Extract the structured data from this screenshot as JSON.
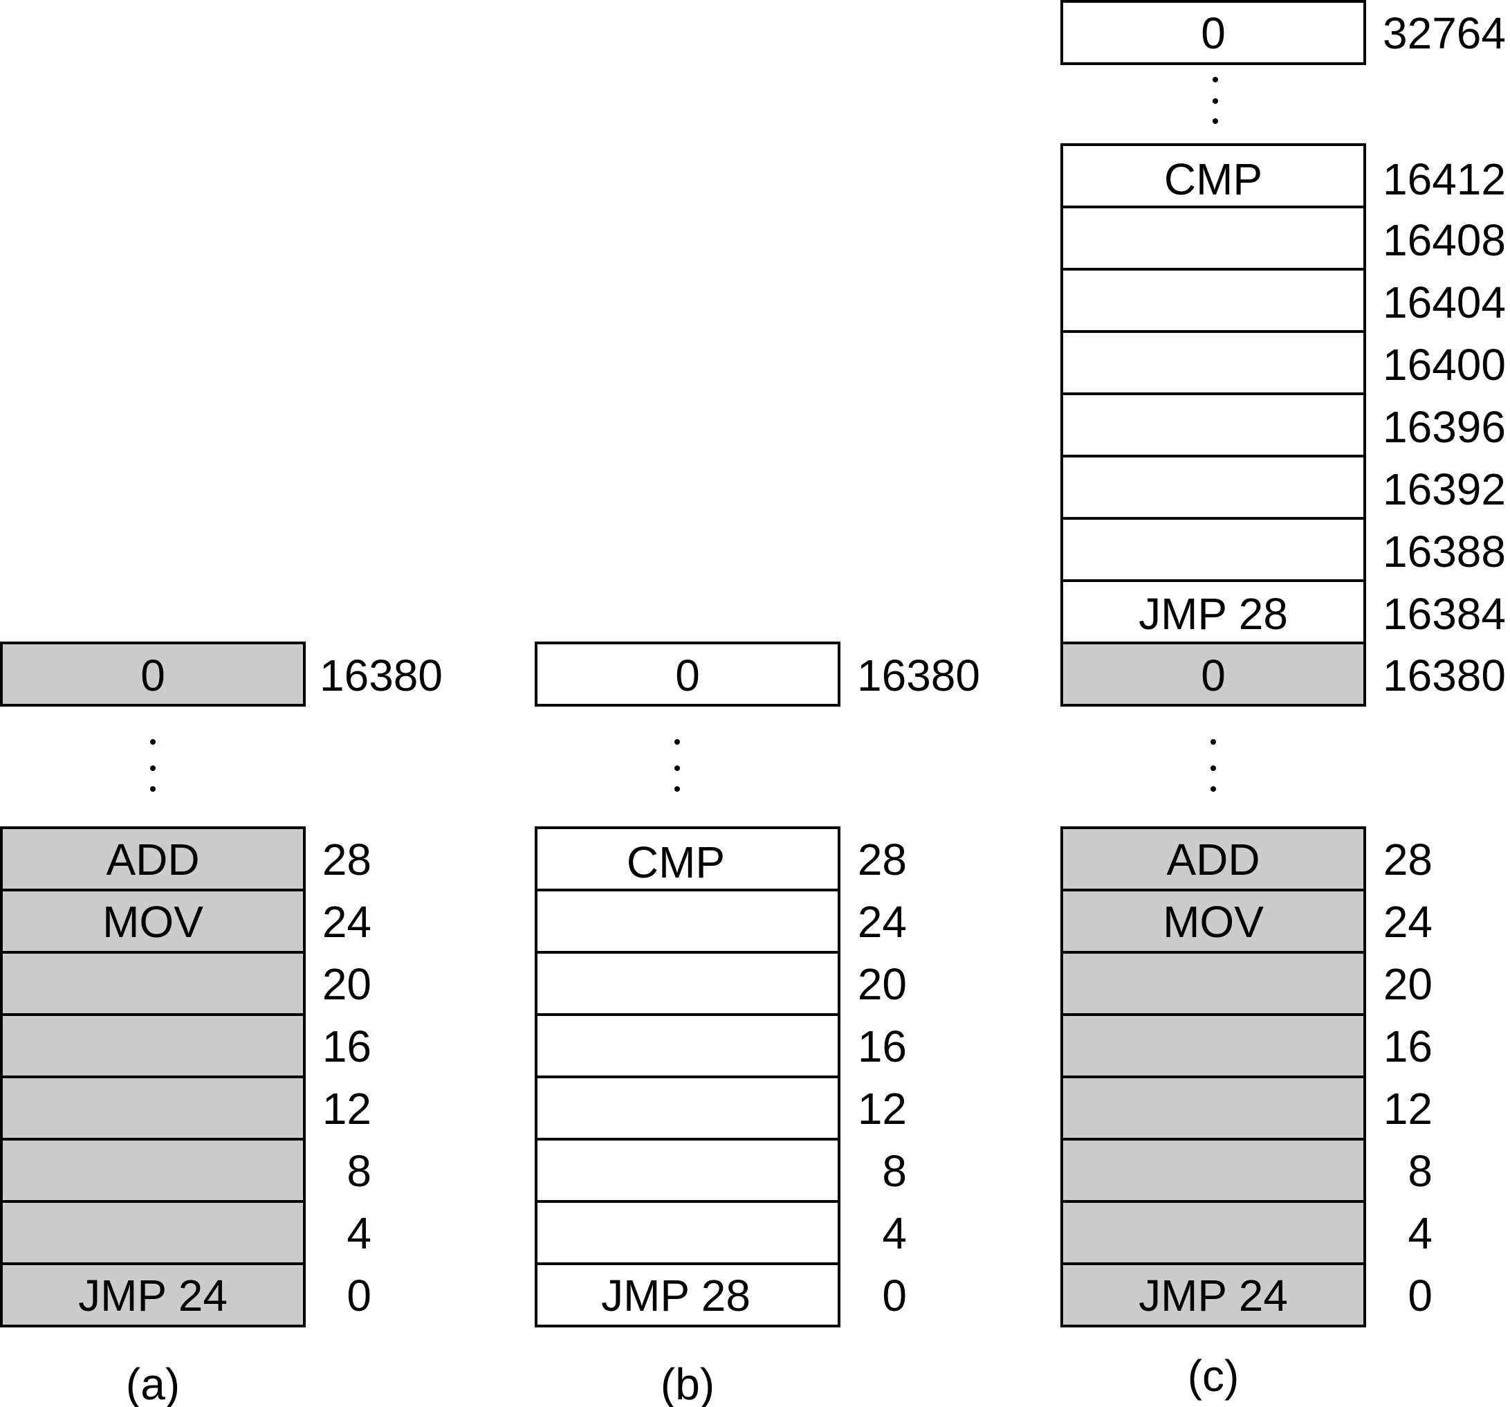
{
  "colors": {
    "shaded": "#cccccc",
    "plain": "#ffffff",
    "line": "#000000"
  },
  "panels": [
    {
      "caption": "(a)",
      "low_block": {
        "cells": [
          {
            "text": "ADD",
            "addr": "28",
            "shaded": true
          },
          {
            "text": "MOV",
            "addr": "24",
            "shaded": true
          },
          {
            "text": "",
            "addr": "20",
            "shaded": true
          },
          {
            "text": "",
            "addr": "16",
            "shaded": true
          },
          {
            "text": "",
            "addr": "12",
            "shaded": true
          },
          {
            "text": "",
            "addr": "8",
            "shaded": true
          },
          {
            "text": "",
            "addr": "4",
            "shaded": true
          },
          {
            "text": "JMP  24",
            "addr": "0",
            "shaded": true
          }
        ]
      },
      "top_cell": {
        "text": "0",
        "addr": "16380",
        "shaded": true
      }
    },
    {
      "caption": "(b)",
      "low_block": {
        "cells": [
          {
            "text": "CMP",
            "addr": "28",
            "shaded": false
          },
          {
            "text": "",
            "addr": "24",
            "shaded": false
          },
          {
            "text": "",
            "addr": "20",
            "shaded": false
          },
          {
            "text": "",
            "addr": "16",
            "shaded": false
          },
          {
            "text": "",
            "addr": "12",
            "shaded": false
          },
          {
            "text": "",
            "addr": "8",
            "shaded": false
          },
          {
            "text": "",
            "addr": "4",
            "shaded": false
          },
          {
            "text": "JMP 28",
            "addr": "0",
            "shaded": false
          }
        ]
      },
      "top_cell": {
        "text": "0",
        "addr": "16380",
        "shaded": false
      }
    },
    {
      "caption": "(c)",
      "low_block": {
        "cells": [
          {
            "text": "ADD",
            "addr": "28",
            "shaded": true
          },
          {
            "text": "MOV",
            "addr": "24",
            "shaded": true
          },
          {
            "text": "",
            "addr": "20",
            "shaded": true
          },
          {
            "text": "",
            "addr": "16",
            "shaded": true
          },
          {
            "text": "",
            "addr": "12",
            "shaded": true
          },
          {
            "text": "",
            "addr": "8",
            "shaded": true
          },
          {
            "text": "",
            "addr": "4",
            "shaded": true
          },
          {
            "text": "JMP  24",
            "addr": "0",
            "shaded": true
          }
        ]
      },
      "mid_block": {
        "cells": [
          {
            "text": "CMP",
            "addr": "16412",
            "shaded": false
          },
          {
            "text": "",
            "addr": "16408",
            "shaded": false
          },
          {
            "text": "",
            "addr": "16404",
            "shaded": false
          },
          {
            "text": "",
            "addr": "16400",
            "shaded": false
          },
          {
            "text": "",
            "addr": "16396",
            "shaded": false
          },
          {
            "text": "",
            "addr": "16392",
            "shaded": false
          },
          {
            "text": "",
            "addr": "16388",
            "shaded": false
          },
          {
            "text": "JMP 28",
            "addr": "16384",
            "shaded": false
          },
          {
            "text": "0",
            "addr": "16380",
            "shaded": true
          }
        ]
      },
      "top_cell": {
        "text": "0",
        "addr": "32764",
        "shaded": false
      }
    }
  ]
}
